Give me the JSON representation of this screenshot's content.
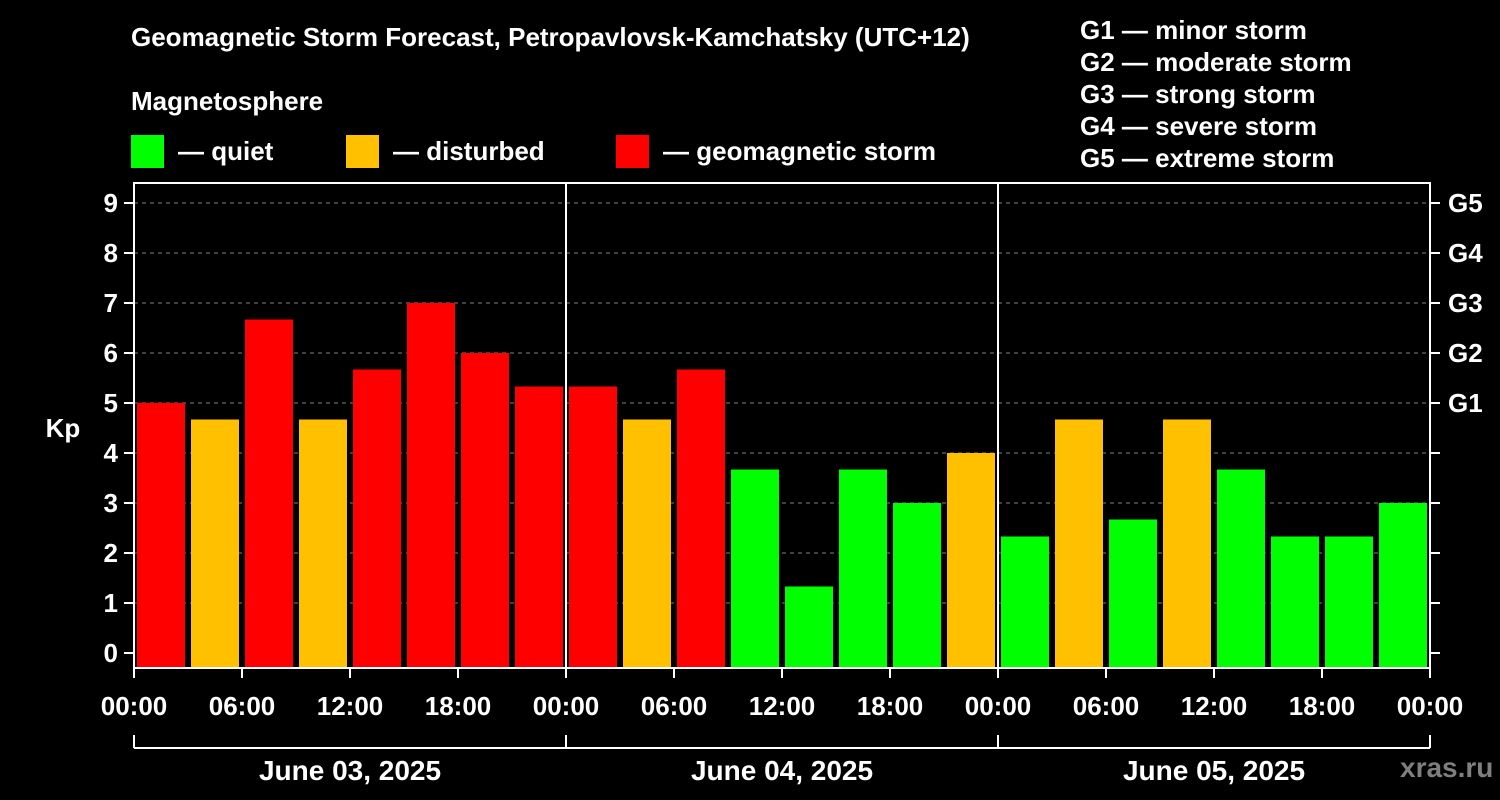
{
  "title": "Geomagnetic Storm Forecast, Petropavlovsk-Kamchatsky (UTC+12)",
  "legend": {
    "heading": "Magnetosphere",
    "items": [
      {
        "label": "— quiet",
        "color": "#00ff00"
      },
      {
        "label": "— disturbed",
        "color": "#ffc000"
      },
      {
        "label": "— geomagnetic storm",
        "color": "#ff0000"
      }
    ]
  },
  "g_scale": [
    "G1 — minor storm",
    "G2 — moderate storm",
    "G3 — strong storm",
    "G4 — severe storm",
    "G5 — extreme storm"
  ],
  "watermark": "xras.ru",
  "colors": {
    "quiet": "#00ff00",
    "disturbed": "#ffc000",
    "storm": "#ff0000"
  },
  "chart_data": {
    "type": "bar",
    "title": "Geomagnetic Storm Forecast, Petropavlovsk-Kamchatsky (UTC+12)",
    "ylabel": "Kp",
    "ylim": [
      -0.3,
      9.4
    ],
    "yticks": [
      0,
      1,
      2,
      3,
      4,
      5,
      6,
      7,
      8,
      9
    ],
    "right_axis": [
      {
        "value": 5,
        "label": "G1"
      },
      {
        "value": 6,
        "label": "G2"
      },
      {
        "value": 7,
        "label": "G3"
      },
      {
        "value": 8,
        "label": "G4"
      },
      {
        "value": 9,
        "label": "G5"
      }
    ],
    "xticks": [
      "00:00",
      "06:00",
      "12:00",
      "18:00",
      "00:00",
      "06:00",
      "12:00",
      "18:00",
      "00:00",
      "06:00",
      "12:00",
      "18:00",
      "00:00"
    ],
    "days": [
      "June 03, 2025",
      "June 04, 2025",
      "June 05, 2025"
    ],
    "interval_hours": 3,
    "categories": [
      "June 03 00-03",
      "June 03 03-06",
      "June 03 06-09",
      "June 03 09-12",
      "June 03 12-15",
      "June 03 15-18",
      "June 03 18-21",
      "June 03 21-24",
      "June 04 00-03",
      "June 04 03-06",
      "June 04 06-09",
      "June 04 09-12",
      "June 04 12-15",
      "June 04 15-18",
      "June 04 18-21",
      "June 04 21-24",
      "June 05 00-03",
      "June 05 03-06",
      "June 05 06-09",
      "June 05 09-12",
      "June 05 12-15",
      "June 05 15-18",
      "June 05 18-21",
      "June 05 21-24"
    ],
    "values": [
      5.0,
      4.67,
      6.67,
      4.67,
      5.67,
      7.0,
      6.0,
      5.33,
      5.33,
      4.67,
      5.67,
      3.67,
      1.33,
      3.67,
      3.0,
      4.0,
      2.33,
      4.67,
      2.67,
      4.67,
      3.67,
      2.33,
      2.33,
      3.0
    ],
    "status": [
      "storm",
      "disturbed",
      "storm",
      "disturbed",
      "storm",
      "storm",
      "storm",
      "storm",
      "storm",
      "disturbed",
      "storm",
      "quiet",
      "quiet",
      "quiet",
      "quiet",
      "disturbed",
      "quiet",
      "disturbed",
      "quiet",
      "disturbed",
      "quiet",
      "quiet",
      "quiet",
      "quiet"
    ],
    "grid": true
  }
}
